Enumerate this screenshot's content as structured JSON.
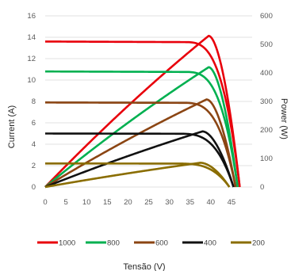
{
  "chart_data": {
    "type": "line",
    "xlabel": "Tensão (V)",
    "ylabel": "Current (A)",
    "y2label": "Power (W)",
    "xlim": [
      0,
      50
    ],
    "ylim": [
      0,
      16
    ],
    "y2lim": [
      0,
      600
    ],
    "xticks": [
      "0",
      "5",
      "10",
      "15",
      "20",
      "25",
      "30",
      "35",
      "40",
      "45"
    ],
    "yticks": [
      "0",
      "2",
      "4",
      "6",
      "8",
      "10",
      "12",
      "14",
      "16"
    ],
    "y2ticks": [
      "0",
      "100",
      "200",
      "300",
      "400",
      "500",
      "600"
    ],
    "grid": true,
    "legend_position": "bottom",
    "series": [
      {
        "name": "1000",
        "color": "#e8000b",
        "current": 13.6,
        "voc": 47.0,
        "vmp": 39.5,
        "pmax": 530
      },
      {
        "name": "800",
        "color": "#00b050",
        "current": 10.8,
        "voc": 46.5,
        "vmp": 39.5,
        "pmax": 420
      },
      {
        "name": "600",
        "color": "#8b4513",
        "current": 7.9,
        "voc": 46.0,
        "vmp": 39.0,
        "pmax": 307
      },
      {
        "name": "400",
        "color": "#111111",
        "current": 5.0,
        "voc": 45.5,
        "vmp": 38.0,
        "pmax": 195
      },
      {
        "name": "200",
        "color": "#8a6d00",
        "current": 2.2,
        "voc": 44.5,
        "vmp": 37.5,
        "pmax": 85
      }
    ]
  }
}
